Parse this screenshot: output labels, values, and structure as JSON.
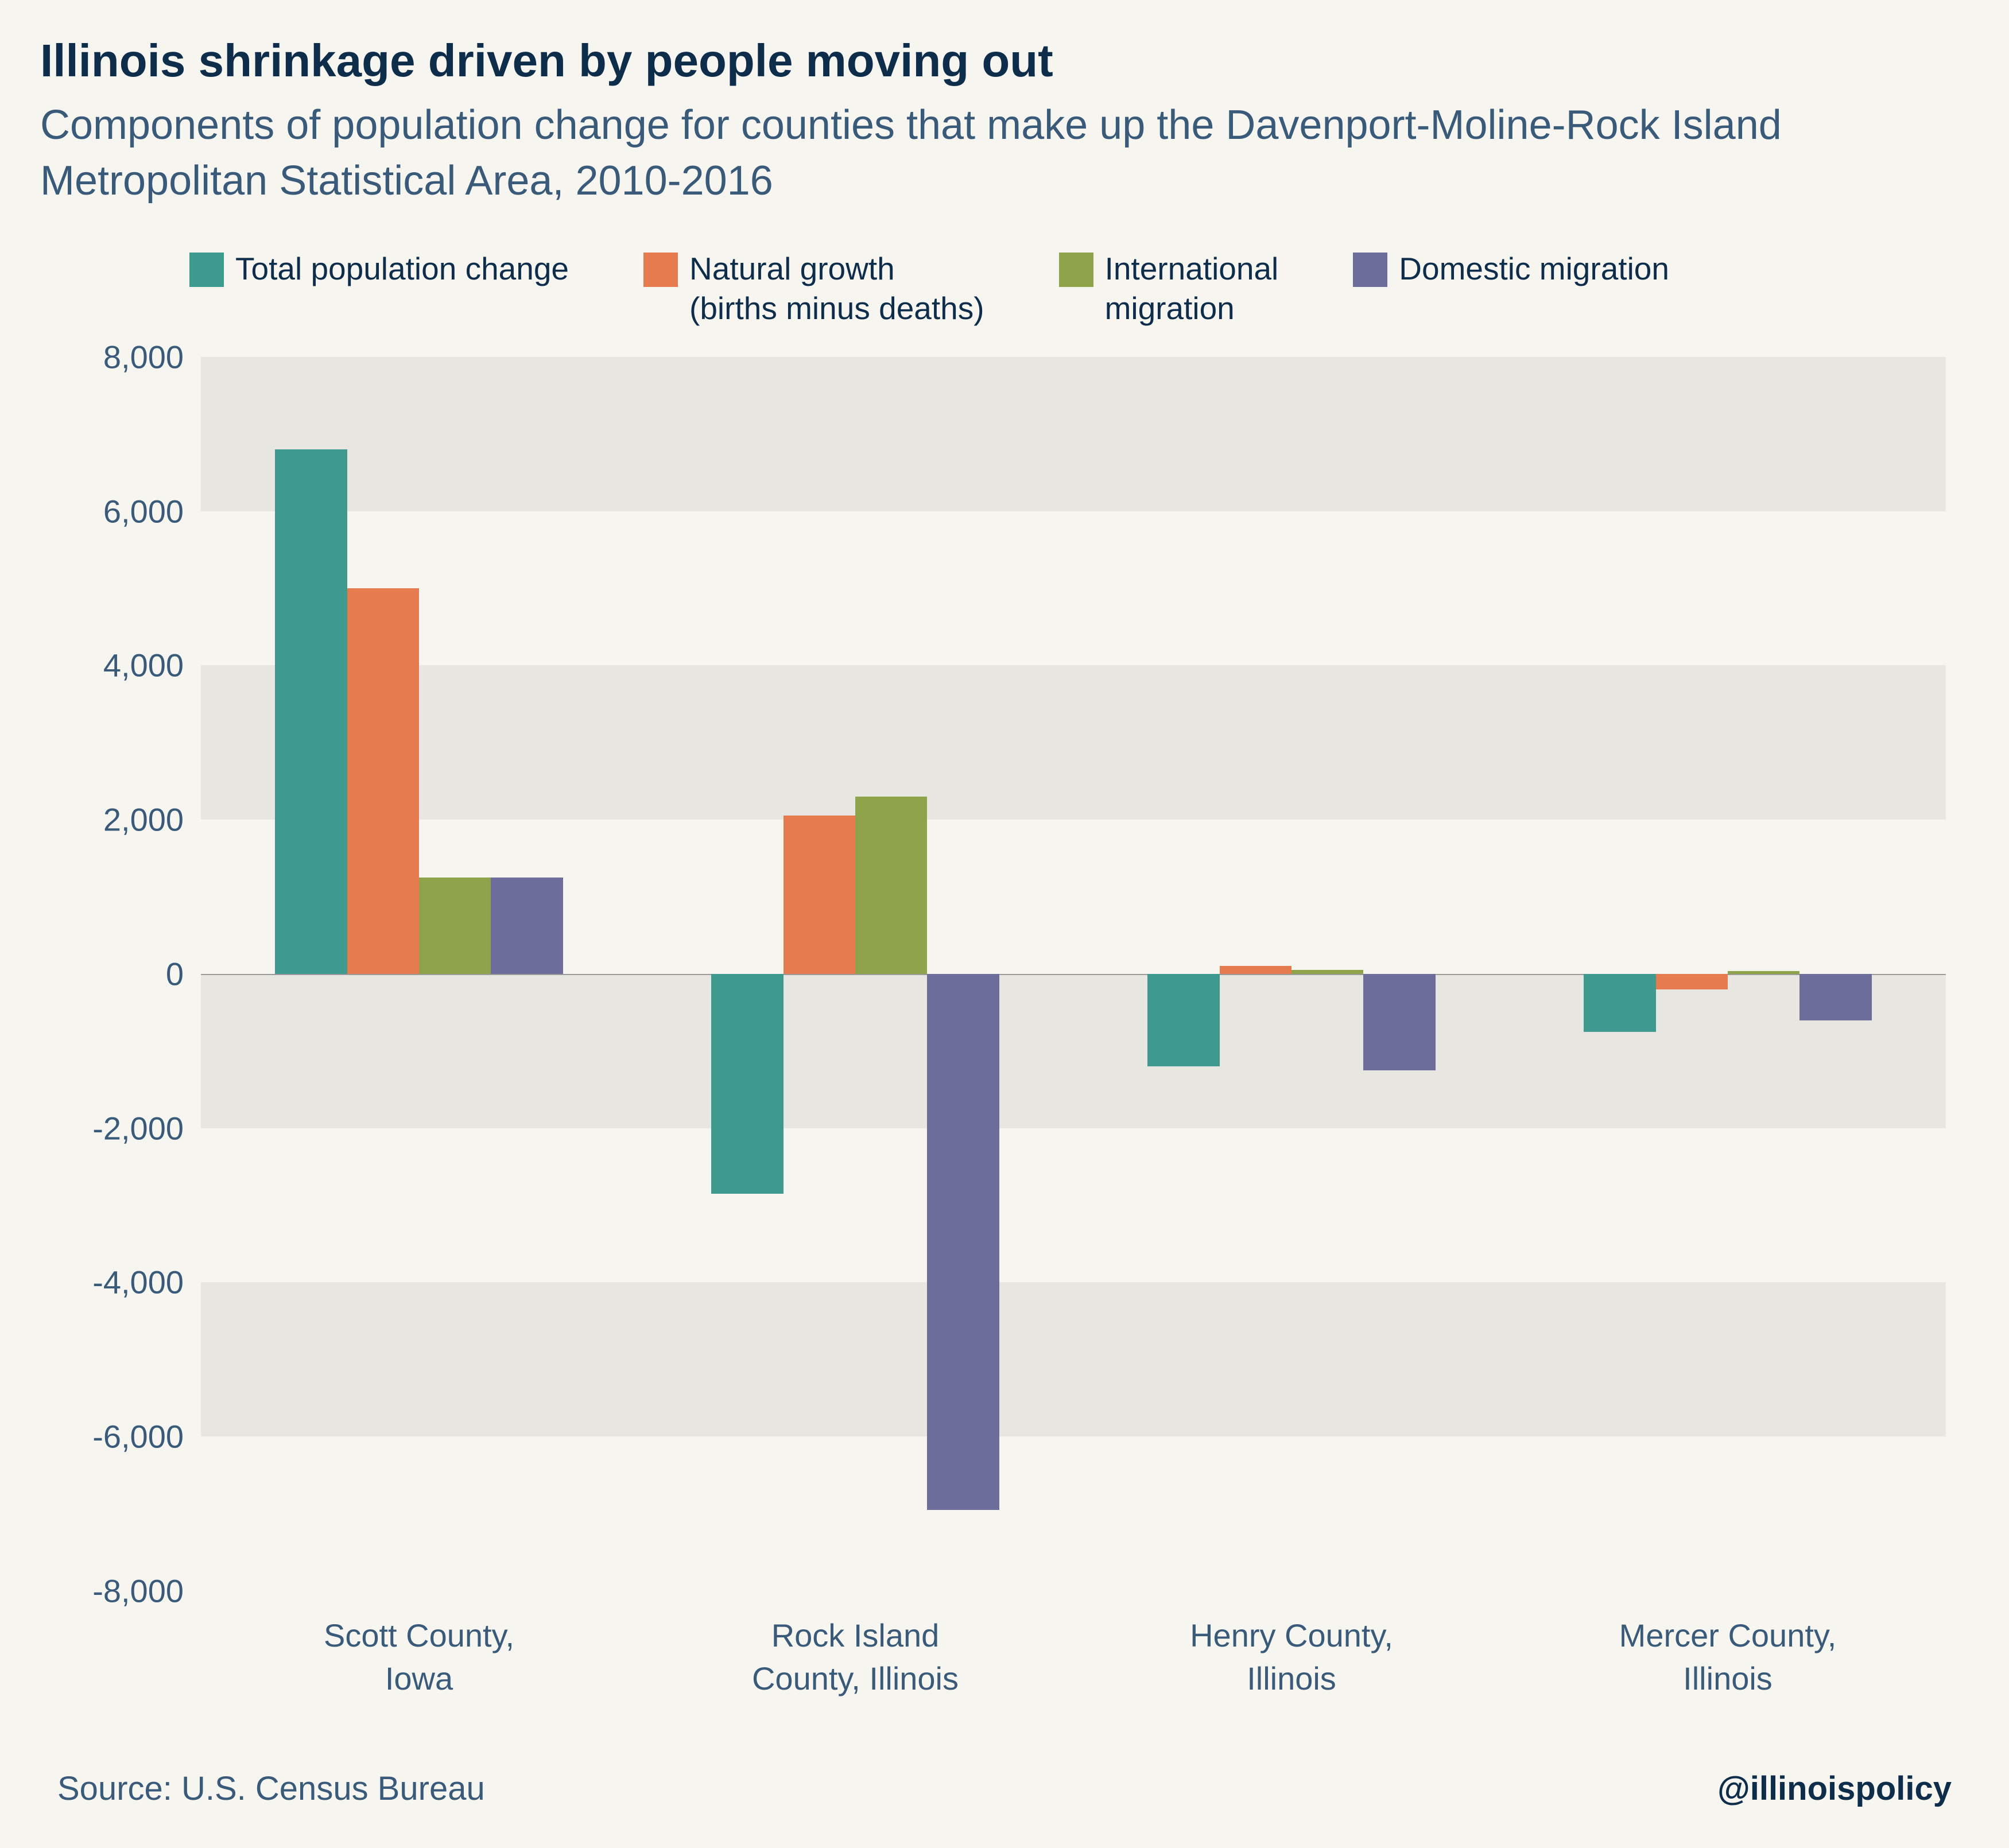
{
  "title": "Illinois shrinkage driven by people moving out",
  "subtitle": "Components of population change for counties that make up the Davenport-Moline-Rock Island Metropolitan Statistical Area, 2010-2016",
  "source": "Source: U.S. Census Bureau",
  "handle": "@illinoispolicy",
  "chart": {
    "type": "grouped-bar",
    "background_color": "#f7f5f0",
    "band_color": "#e8e6e0",
    "zero_line_color": "#9a9a9a",
    "text_color": "#3a5a7a",
    "title_color": "#0d2d4a",
    "ylim": [
      -8000,
      8000
    ],
    "ytick_step": 2000,
    "yticks": [
      8000,
      6000,
      4000,
      2000,
      0,
      -2000,
      -4000,
      -6000,
      -8000
    ],
    "ytick_labels": [
      "8,000",
      "6,000",
      "4,000",
      "2,000",
      "0",
      "-2,000",
      "-4,000",
      "-6,000",
      "-8,000"
    ],
    "series": [
      {
        "key": "total",
        "label": "Total population change",
        "color": "#3e9a8e"
      },
      {
        "key": "natural",
        "label": "Natural growth\n(births minus deaths)",
        "color": "#e57b4f"
      },
      {
        "key": "intl",
        "label": "International\nmigration",
        "color": "#8fa34a"
      },
      {
        "key": "domestic",
        "label": "Domestic migration",
        "color": "#6d6d9c"
      }
    ],
    "categories": [
      {
        "label": "Scott County,\nIowa",
        "values": {
          "total": 6800,
          "natural": 5000,
          "intl": 1250,
          "domestic": 1250
        }
      },
      {
        "label": "Rock Island\nCounty, Illinois",
        "values": {
          "total": -2850,
          "natural": 2050,
          "intl": 2300,
          "domestic": -6950
        }
      },
      {
        "label": "Henry County,\nIllinois",
        "values": {
          "total": -1200,
          "natural": 100,
          "intl": 50,
          "domestic": -1250
        }
      },
      {
        "label": "Mercer County,\nIllinois",
        "values": {
          "total": -750,
          "natural": -200,
          "intl": 40,
          "domestic": -600
        }
      }
    ],
    "bar_width_ratio": 0.165,
    "group_gap_ratio": 0.08,
    "title_fontsize": 80,
    "subtitle_fontsize": 72,
    "axis_fontsize": 56,
    "legend_fontsize": 55
  }
}
